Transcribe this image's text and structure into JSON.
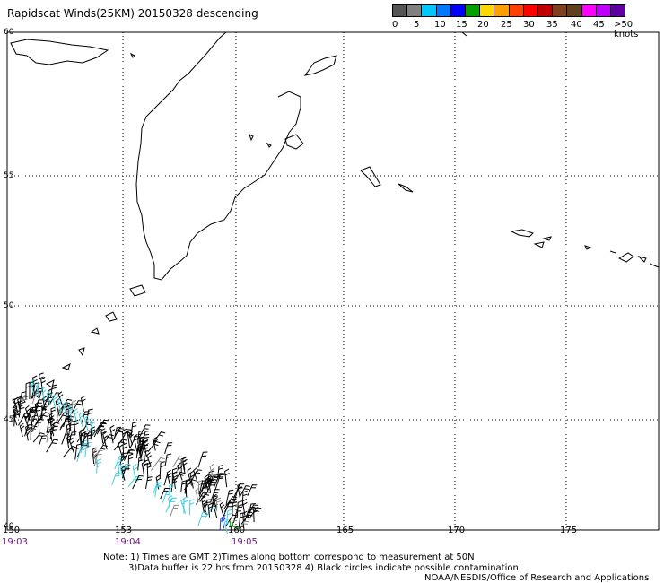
{
  "title": "Rapidscat Winds(25KM) 20150328 descending",
  "legend": {
    "labels": [
      "0",
      "5",
      "10",
      "15",
      "20",
      "25",
      "30",
      "35",
      "40",
      "45",
      ">50 knots"
    ],
    "colors": [
      "#555555",
      "#808080",
      "#00c8ff",
      "#0078ff",
      "#0000ff",
      "#00a000",
      "#ffd800",
      "#ffa000",
      "#ff4000",
      "#ff0000",
      "#c00000",
      "#804020",
      "#604020",
      "#ff00ff",
      "#c000ff",
      "#6000a0"
    ]
  },
  "lat_labels": [
    "60",
    "55",
    "50",
    "45",
    "40"
  ],
  "lon_labels": [
    "150",
    "153",
    "160",
    "165",
    "170",
    "175"
  ],
  "time_labels": [
    "19:03",
    "19:04",
    "19:05"
  ],
  "notes": [
    "Note: 1) Times are GMT 2)Times along bottom correspond to measurement at 50N",
    "3)Data buffer is 22 hrs from 20150328 4) Black circles indicate possible contamination"
  ],
  "credit": "NOAA/NESDIS/Office of Research and Applications",
  "map": {
    "lon_range": [
      150,
      178.7
    ],
    "lat_range": [
      40,
      60.1
    ]
  }
}
